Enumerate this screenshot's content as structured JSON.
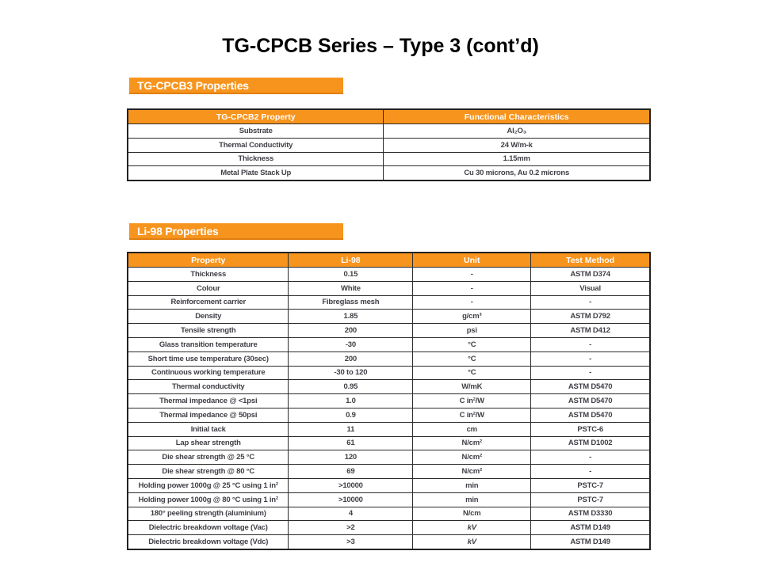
{
  "slide": {
    "title": "TG-CPCB Series – Type 3 (cont’d)"
  },
  "colors": {
    "accent_orange": "#F7941D",
    "table_border": "#222222",
    "cell_text": "#3f3f46"
  },
  "section1": {
    "badge": "TG-CPCB3 Properties",
    "table": {
      "headers": [
        "TG-CPCB2 Property",
        "Functional Characteristics"
      ],
      "rows": [
        [
          "Substrate",
          "Al₂O₃"
        ],
        [
          "Thermal Conductivity",
          "24 W/m-k"
        ],
        [
          "Thickness",
          "1.15mm"
        ],
        [
          "Metal Plate Stack Up",
          "Cu 30 microns, Au 0.2 microns"
        ]
      ]
    }
  },
  "section2": {
    "badge": "Li-98 Properties",
    "table": {
      "headers": [
        "Property",
        "Li-98",
        "Unit",
        "Test Method"
      ],
      "rows": [
        [
          "Thickness",
          "0.15",
          "-",
          "ASTM D374"
        ],
        [
          "Colour",
          "White",
          "-",
          "Visual"
        ],
        [
          "Reinforcement carrier",
          "Fibreglass mesh",
          "-",
          "-"
        ],
        [
          "Density",
          "1.85",
          "g/cm³",
          "ASTM D792"
        ],
        [
          "Tensile strength",
          "200",
          "psi",
          "ASTM D412"
        ],
        [
          "Glass transition temperature",
          "-30",
          "°C",
          "-"
        ],
        [
          "Short time use temperature (30sec)",
          "200",
          "°C",
          "-"
        ],
        [
          "Continuous working temperature",
          "-30 to 120",
          "°C",
          "-"
        ],
        [
          "Thermal conductivity",
          "0.95",
          "W/mK",
          "ASTM D5470"
        ],
        [
          "Thermal impedance @ <1psi",
          "1.0",
          "C in²/W",
          "ASTM D5470"
        ],
        [
          "Thermal impedance @ 50psi",
          "0.9",
          "C in²/W",
          "ASTM D5470"
        ],
        [
          "Initial tack",
          "11",
          "cm",
          "PSTC-6"
        ],
        [
          "Lap shear strength",
          "61",
          "N/cm²",
          "ASTM D1002"
        ],
        [
          "Die shear strength @ 25 °C",
          "120",
          "N/cm²",
          "-"
        ],
        [
          "Die shear strength @ 80 °C",
          "69",
          "N/cm²",
          "-"
        ],
        [
          "Holding power 1000g @ 25 °C using 1 in²",
          ">10000",
          "min",
          "PSTC-7"
        ],
        [
          "Holding power 1000g @ 80 °C using 1 in²",
          ">10000",
          "min",
          "PSTC-7"
        ],
        [
          "180° peeling strength  (aluminium)",
          "4",
          "N/cm",
          "ASTM D3330"
        ],
        [
          "Dielectric breakdown voltage (Vac)",
          ">2",
          "kV",
          "ASTM D149"
        ],
        [
          "Dielectric breakdown voltage (Vdc)",
          ">3",
          "kV",
          "ASTM D149"
        ]
      ]
    }
  }
}
